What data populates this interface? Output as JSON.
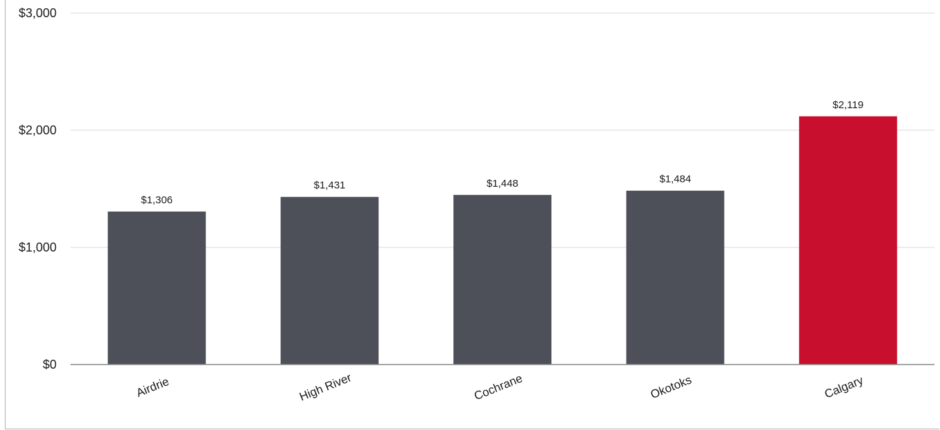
{
  "chart_data": {
    "type": "bar",
    "categories": [
      "Airdrie",
      "High River",
      "Cochrane",
      "Okotoks",
      "Calgary"
    ],
    "values": [
      1306,
      1431,
      1448,
      1484,
      2119
    ],
    "value_labels": [
      "$1,306",
      "$1,431",
      "$1,448",
      "$1,484",
      "$2,119"
    ],
    "bar_colors": [
      "#4d5058",
      "#4d5058",
      "#4d5058",
      "#4d5058",
      "#c8102e"
    ],
    "ylim": [
      0,
      3000
    ],
    "y_ticks": [
      0,
      1000,
      2000,
      3000
    ],
    "y_tick_labels": [
      "$0",
      "$1,000",
      "$2,000",
      "$3,000"
    ],
    "title": "",
    "xlabel": "",
    "ylabel": "",
    "grid": true,
    "legend": "none"
  }
}
